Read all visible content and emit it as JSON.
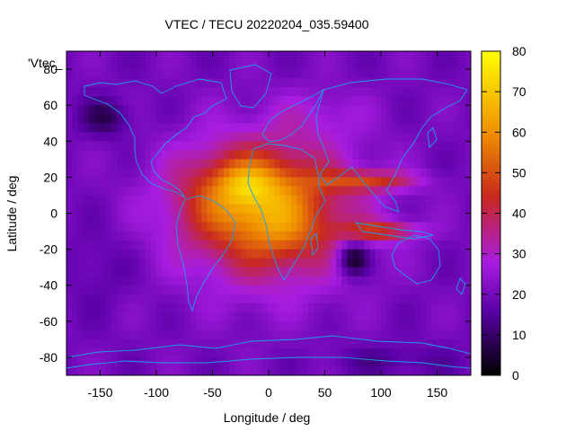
{
  "chart_data": {
    "type": "heatmap",
    "title": "VTEC / TECU 20220204_035.59400",
    "xlabel": "Longitude / deg",
    "ylabel": "Latitude / deg",
    "key_label": "'Vtec_",
    "xlim": [
      -180,
      180
    ],
    "ylim": [
      -90,
      90
    ],
    "x_ticks": [
      -150,
      -100,
      -50,
      0,
      50,
      100,
      150
    ],
    "y_ticks": [
      -80,
      -60,
      -40,
      -20,
      0,
      20,
      40,
      60,
      80
    ],
    "colorbar": {
      "range": [
        0,
        80
      ],
      "ticks": [
        0,
        10,
        20,
        30,
        40,
        50,
        60,
        70,
        80
      ]
    },
    "grid": false,
    "colormap": [
      "#000000",
      "#5a00a8",
      "#a81de0",
      "#c8281e",
      "#f09000",
      "#ffff00"
    ],
    "coastline_color": "#1e9ee8",
    "field_features": [
      {
        "lon": 0,
        "lat": 0,
        "sigma_lon": 55,
        "sigma_lat": 28,
        "value": 30
      },
      {
        "lon": -22,
        "lat": 10,
        "sigma_lon": 42,
        "sigma_lat": 18,
        "value": 18
      },
      {
        "lon": -20,
        "lat": 16,
        "sigma_lon": 18,
        "sigma_lat": 8,
        "value": 12
      },
      {
        "lon": 15,
        "lat": -12,
        "sigma_lon": 22,
        "sigma_lat": 10,
        "value": 6
      },
      {
        "lon": 90,
        "lat": 18,
        "sigma_lon": 30,
        "sigma_lat": 4,
        "value": 22
      },
      {
        "lon": 100,
        "lat": -10,
        "sigma_lon": 25,
        "sigma_lat": 4,
        "value": 22
      },
      {
        "lon": 75,
        "lat": -25,
        "sigma_lon": 10,
        "sigma_lat": 7,
        "value": -22
      },
      {
        "lon": -145,
        "lat": 53,
        "sigma_lon": 15,
        "sigma_lat": 7,
        "value": -12
      },
      {
        "lon": 45,
        "lat": 55,
        "sigma_lon": 30,
        "sigma_lat": 10,
        "value": 6
      },
      {
        "lon": -150,
        "lat": -30,
        "sigma_lon": 20,
        "sigma_lat": 15,
        "value": -4
      },
      {
        "lon": 110,
        "lat": -82,
        "sigma_lon": 40,
        "sigma_lat": 6,
        "value": -6
      }
    ],
    "field_base": 20
  }
}
